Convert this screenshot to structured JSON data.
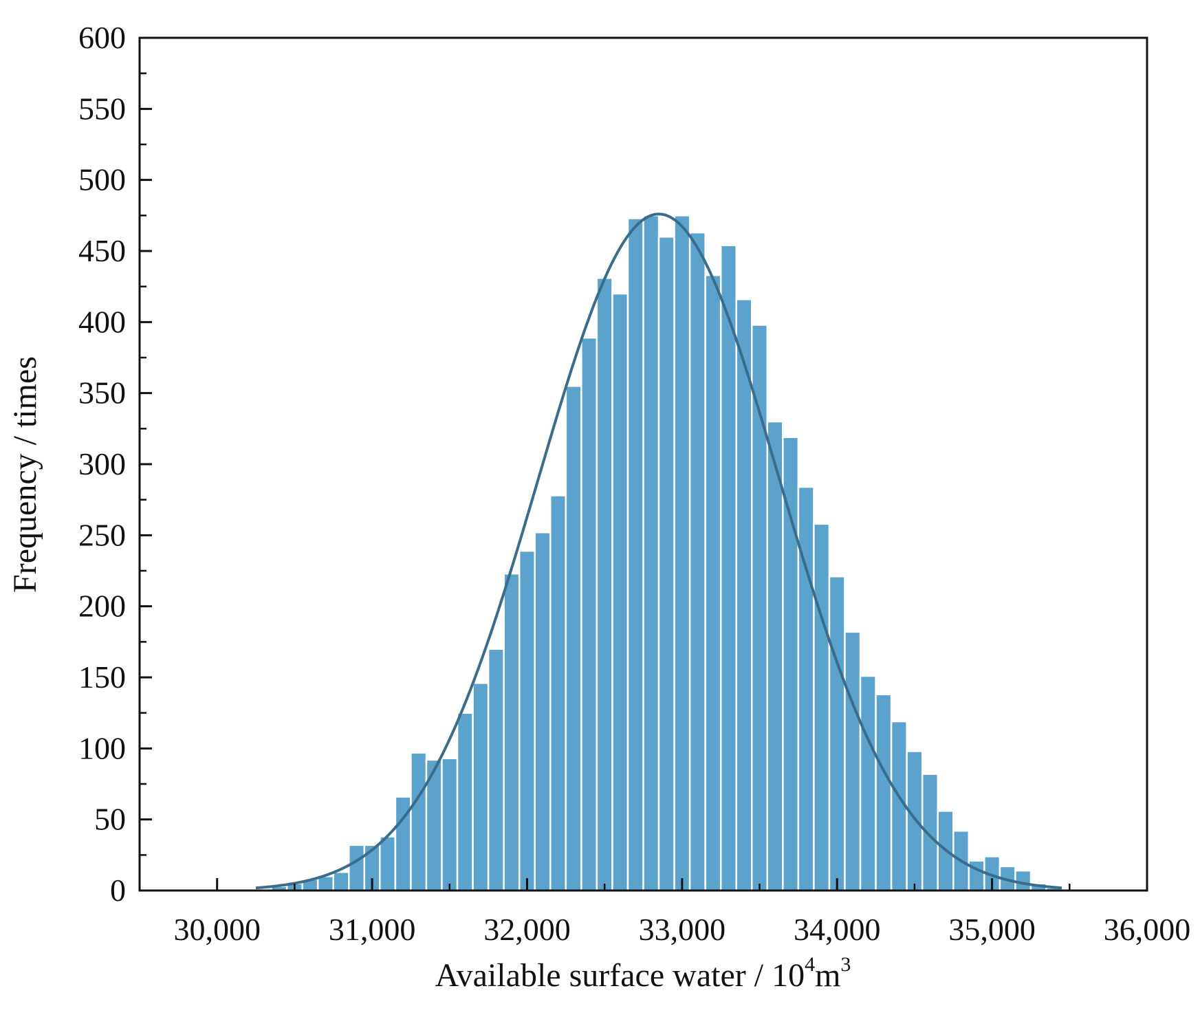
{
  "chart_data": {
    "type": "bar",
    "subtype": "histogram-with-normal-fit",
    "title": "",
    "xlabel": {
      "text": "Available surface water / 10",
      "sup1": "4",
      "unit": "m",
      "sup2": "3"
    },
    "ylabel": "Frequency / times",
    "xlim": [
      29500,
      36000
    ],
    "ylim": [
      0,
      600
    ],
    "xticks": [
      30000,
      31000,
      32000,
      33000,
      34000,
      35000,
      36000
    ],
    "xtick_labels": [
      "30,000",
      "31,000",
      "32,000",
      "33,000",
      "34,000",
      "35,000",
      "36,000"
    ],
    "yticks": [
      0,
      50,
      100,
      150,
      200,
      250,
      300,
      350,
      400,
      450,
      500,
      550,
      600
    ],
    "ytick_labels": [
      "0",
      "50",
      "100",
      "150",
      "200",
      "250",
      "300",
      "350",
      "400",
      "450",
      "500",
      "550",
      "600"
    ],
    "grid": false,
    "legend": "none",
    "bin_width": 100,
    "bin_centers": [
      30300,
      30400,
      30500,
      30600,
      30700,
      30800,
      30900,
      31000,
      31100,
      31200,
      31300,
      31400,
      31500,
      31600,
      31700,
      31800,
      31900,
      32000,
      32100,
      32200,
      32300,
      32400,
      32500,
      32600,
      32700,
      32800,
      32900,
      33000,
      33100,
      33200,
      33300,
      33400,
      33500,
      33600,
      33700,
      33800,
      33900,
      34000,
      34100,
      34200,
      34300,
      34400,
      34500,
      34600,
      34700,
      34800,
      34900,
      35000,
      35100,
      35200,
      35300,
      35400
    ],
    "values": [
      1,
      3,
      5,
      8,
      10,
      13,
      32,
      32,
      38,
      66,
      97,
      92,
      93,
      125,
      146,
      170,
      223,
      239,
      252,
      278,
      355,
      389,
      431,
      420,
      473,
      475,
      460,
      475,
      463,
      433,
      454,
      416,
      398,
      330,
      319,
      284,
      258,
      221,
      182,
      151,
      138,
      119,
      98,
      82,
      56,
      42,
      21,
      24,
      17,
      14,
      5,
      2
    ],
    "fit_curve": {
      "type": "normal",
      "mean": 32850,
      "std": 780,
      "peak": 476
    },
    "colors": {
      "bar": "#5ba2cc",
      "bar_edge": "#ffffff",
      "curve": "#3a6c8c",
      "axis": "#111111"
    }
  }
}
